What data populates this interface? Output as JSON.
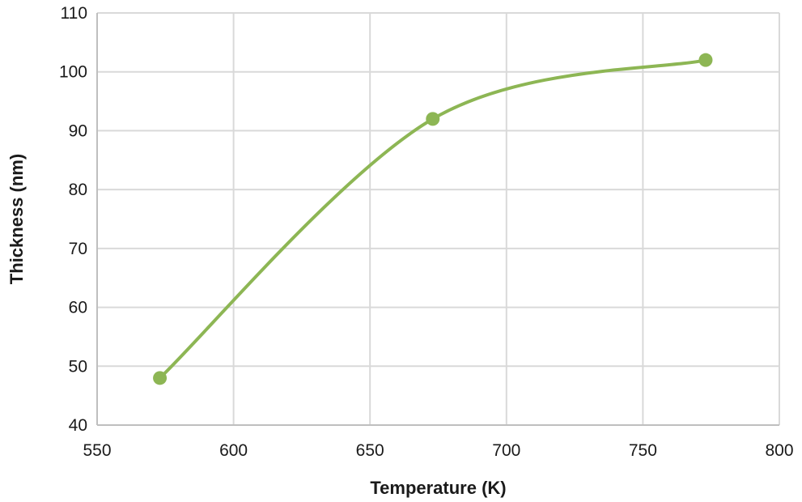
{
  "chart_data": {
    "type": "line",
    "title": "",
    "xlabel": "Temperature (K)",
    "ylabel": "Thickness (nm)",
    "xlim": [
      550,
      800
    ],
    "ylim": [
      40,
      110
    ],
    "x_ticks": [
      "550",
      "600",
      "650",
      "700",
      "750",
      "800"
    ],
    "y_ticks": [
      "40",
      "50",
      "60",
      "70",
      "80",
      "90",
      "100",
      "110"
    ],
    "grid": true,
    "smooth": true,
    "series": [
      {
        "x": [
          573,
          673,
          773
        ],
        "y": [
          48,
          92,
          102
        ],
        "color": "#8db654"
      }
    ]
  }
}
